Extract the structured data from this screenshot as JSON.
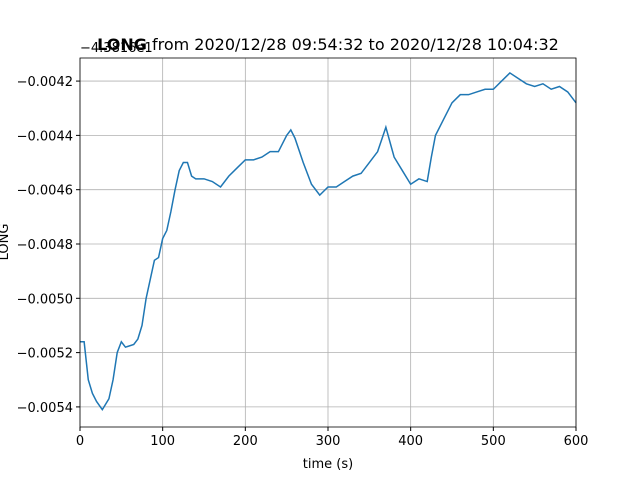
{
  "chart_data": {
    "type": "line",
    "title": {
      "bold": "LONG",
      "rest": "from 2020/12/28 09:54:32 to 2020/12/28 10:04:32"
    },
    "offset_text": "−4.3816e1",
    "x_label": "time (s)",
    "y_label": "LONG",
    "x": [
      0,
      5,
      10,
      15,
      20,
      27,
      35,
      40,
      45,
      50,
      55,
      65,
      70,
      75,
      80,
      90,
      95,
      100,
      105,
      110,
      115,
      120,
      125,
      130,
      135,
      140,
      150,
      160,
      170,
      180,
      190,
      200,
      210,
      220,
      230,
      240,
      250,
      255,
      260,
      270,
      280,
      290,
      300,
      310,
      320,
      330,
      340,
      350,
      360,
      370,
      380,
      390,
      400,
      410,
      420,
      425,
      430,
      440,
      450,
      460,
      470,
      480,
      490,
      500,
      510,
      520,
      530,
      540,
      550,
      560,
      570,
      580,
      590,
      600
    ],
    "series": [
      {
        "name": "LONG",
        "color": "#1f77b4",
        "values": [
          -0.00516,
          -0.00516,
          -0.0053,
          -0.00535,
          -0.00538,
          -0.00541,
          -0.00537,
          -0.0053,
          -0.0052,
          -0.00516,
          -0.00518,
          -0.00517,
          -0.00515,
          -0.0051,
          -0.005,
          -0.00486,
          -0.00485,
          -0.00478,
          -0.00475,
          -0.00468,
          -0.0046,
          -0.00453,
          -0.0045,
          -0.0045,
          -0.00455,
          -0.00456,
          -0.00456,
          -0.00457,
          -0.00459,
          -0.00455,
          -0.00452,
          -0.00449,
          -0.00449,
          -0.00448,
          -0.00446,
          -0.00446,
          -0.0044,
          -0.00438,
          -0.00441,
          -0.0045,
          -0.00458,
          -0.00462,
          -0.00459,
          -0.00459,
          -0.00457,
          -0.00455,
          -0.00454,
          -0.0045,
          -0.00446,
          -0.00437,
          -0.00448,
          -0.00453,
          -0.00458,
          -0.00456,
          -0.00457,
          -0.00448,
          -0.0044,
          -0.00434,
          -0.00428,
          -0.00425,
          -0.00425,
          -0.00424,
          -0.00423,
          -0.00423,
          -0.0042,
          -0.00417,
          -0.00419,
          -0.00421,
          -0.00422,
          -0.00421,
          -0.00423,
          -0.00422,
          -0.00424,
          -0.00428
        ]
      }
    ],
    "xlim": [
      0,
      600
    ],
    "xticks": [
      0,
      100,
      200,
      300,
      400,
      500,
      600
    ],
    "ylim": [
      -0.005474,
      -0.004115
    ],
    "yticks": [
      {
        "value": -0.0054,
        "label": "−0.0054"
      },
      {
        "value": -0.0052,
        "label": "−0.0052"
      },
      {
        "value": -0.005,
        "label": "−0.0050"
      },
      {
        "value": -0.0048,
        "label": "−0.0048"
      },
      {
        "value": -0.0046,
        "label": "−0.0046"
      },
      {
        "value": -0.0044,
        "label": "−0.0044"
      },
      {
        "value": -0.0042,
        "label": "−0.0042"
      }
    ],
    "grid": true
  }
}
